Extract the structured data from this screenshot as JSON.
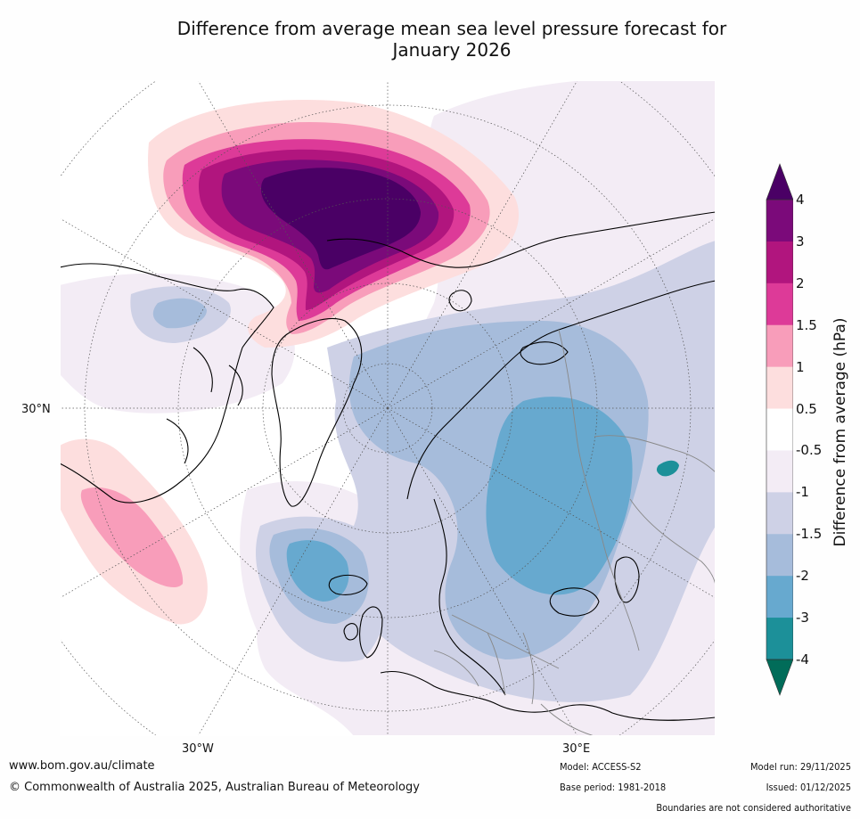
{
  "title_line1": "Difference from average mean sea level pressure forecast for",
  "title_line2": "January 2026",
  "map": {
    "labels": {
      "lat30": "30°N",
      "lon30w": "30°W",
      "lon30e": "30°E"
    }
  },
  "colorbar": {
    "title": "Difference from average (hPa)",
    "ticks": [
      "4",
      "3",
      "2",
      "1.5",
      "1",
      "0.5",
      "-0.5",
      "-1",
      "-1.5",
      "-2",
      "-3",
      "-4"
    ],
    "colors": [
      "#4a0065",
      "#7b0a7a",
      "#b1157e",
      "#dd3a98",
      "#f89dba",
      "#fddede",
      "#ffffff",
      "#f3ecf5",
      "#ced1e6",
      "#a6bcdb",
      "#67a9cf",
      "#1c9099",
      "#016c59"
    ]
  },
  "footer": {
    "website": "www.bom.gov.au/climate",
    "copyright": "© Commonwealth of Australia 2025, Australian Bureau of Meteorology",
    "model": "Model: ACCESS-S2",
    "base_period": "Base period: 1981-2018",
    "model_run": "Model run: 29/11/2025",
    "issued": "Issued: 01/12/2025",
    "boundaries": "Boundaries are not considered authoritative"
  }
}
